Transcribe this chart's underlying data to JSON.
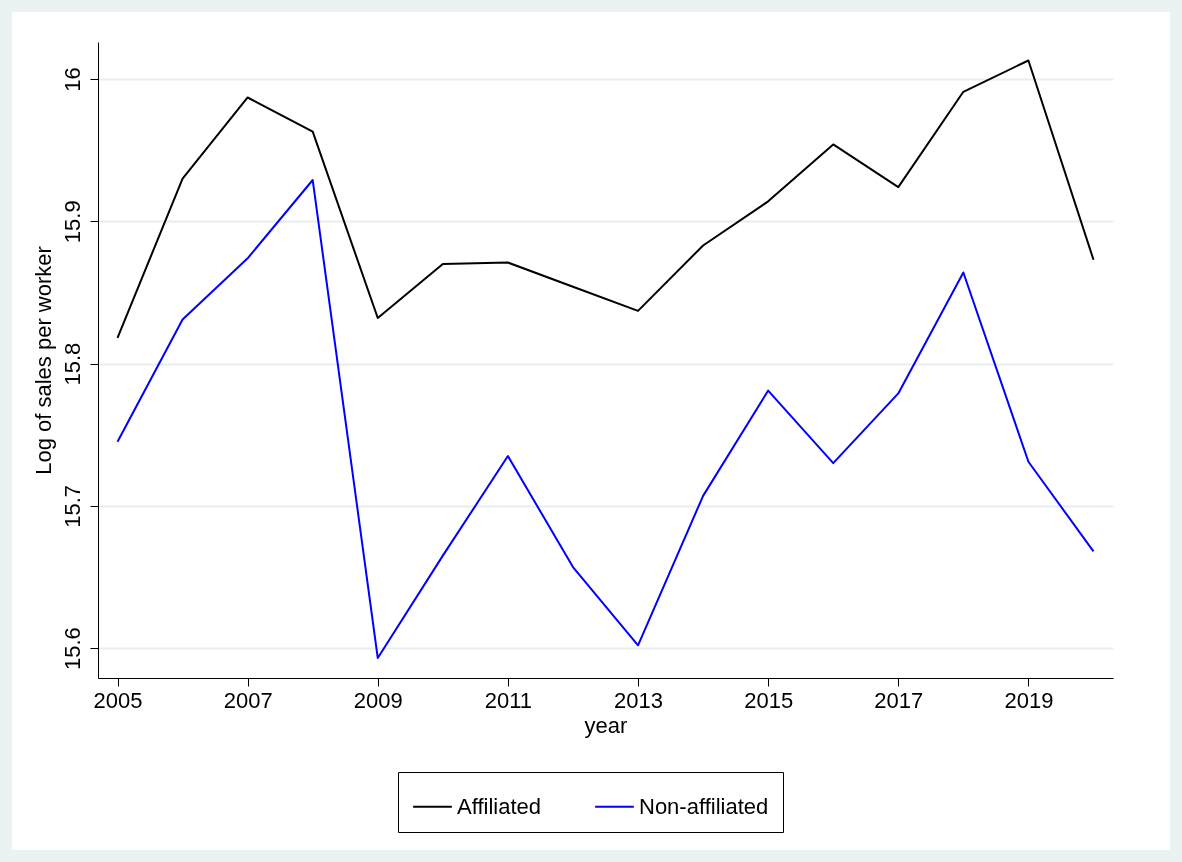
{
  "chart_data": {
    "type": "line",
    "xlabel": "year",
    "ylabel": "Log of sales per worker",
    "x": [
      2005,
      2006,
      2007,
      2008,
      2009,
      2010,
      2011,
      2012,
      2013,
      2014,
      2015,
      2016,
      2017,
      2018,
      2019,
      2020
    ],
    "series": [
      {
        "name": "Affiliated",
        "color": "#000000",
        "values": [
          15.818,
          15.93,
          15.987,
          15.963,
          15.832,
          15.87,
          15.871,
          15.854,
          15.837,
          15.883,
          15.914,
          15.954,
          15.924,
          15.991,
          16.013,
          15.873
        ]
      },
      {
        "name": "Non-affiliated",
        "color": "#0000ff",
        "values": [
          15.745,
          15.831,
          15.874,
          15.929,
          15.593,
          15.665,
          15.735,
          15.657,
          15.602,
          15.707,
          15.781,
          15.73,
          15.779,
          15.864,
          15.731,
          15.668
        ]
      }
    ],
    "xlim": [
      2004.7,
      2020.3
    ],
    "xticks": [
      2005,
      2007,
      2009,
      2011,
      2013,
      2015,
      2017,
      2019
    ],
    "ylim": [
      15.579,
      16.026
    ],
    "yticks": [
      15.6,
      15.7,
      15.8,
      15.9,
      16
    ],
    "grid": "y",
    "legend": "bottom",
    "marker": "none",
    "line_style": "solid"
  }
}
